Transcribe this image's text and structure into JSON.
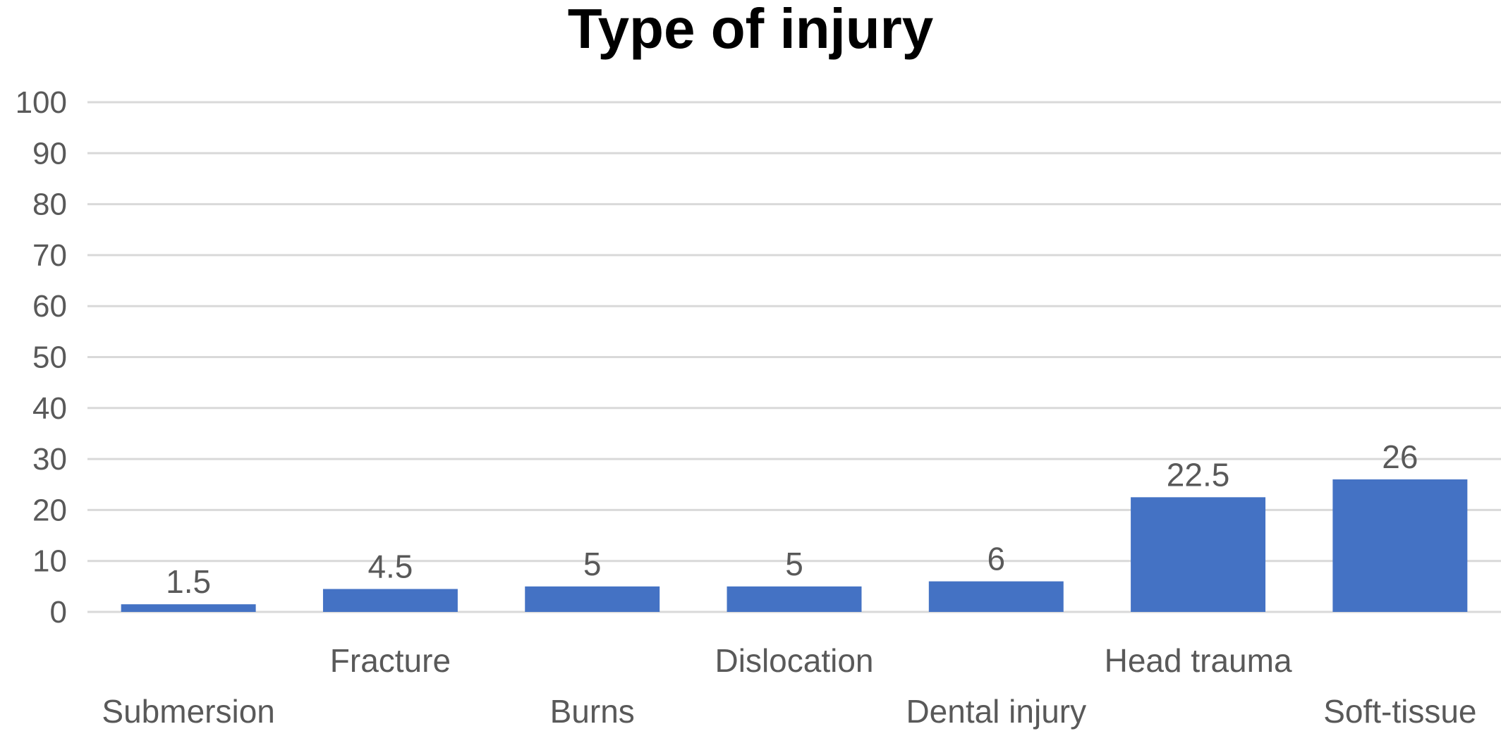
{
  "chart_data": {
    "type": "bar",
    "title": "Type of injury",
    "xlabel": "",
    "ylabel": "",
    "categories": [
      "Submersion",
      "Fracture",
      "Burns",
      "Dislocation",
      "Dental injury",
      "Head trauma",
      "Soft-tissue"
    ],
    "values": [
      1.5,
      4.5,
      5,
      5,
      6,
      22.5,
      26
    ],
    "value_labels": [
      "1.5",
      "4.5",
      "5",
      "5",
      "6",
      "22.5",
      "26"
    ],
    "ylim": [
      0,
      100
    ],
    "yticks": [
      0,
      10,
      20,
      30,
      40,
      50,
      60,
      70,
      80,
      90,
      100
    ],
    "grid": true,
    "legend": "none",
    "label_stagger": "alternating",
    "colors": {
      "bar": "#4472C4",
      "grid": "#D9D9D9",
      "text": "#595959",
      "title": "#000000"
    }
  }
}
